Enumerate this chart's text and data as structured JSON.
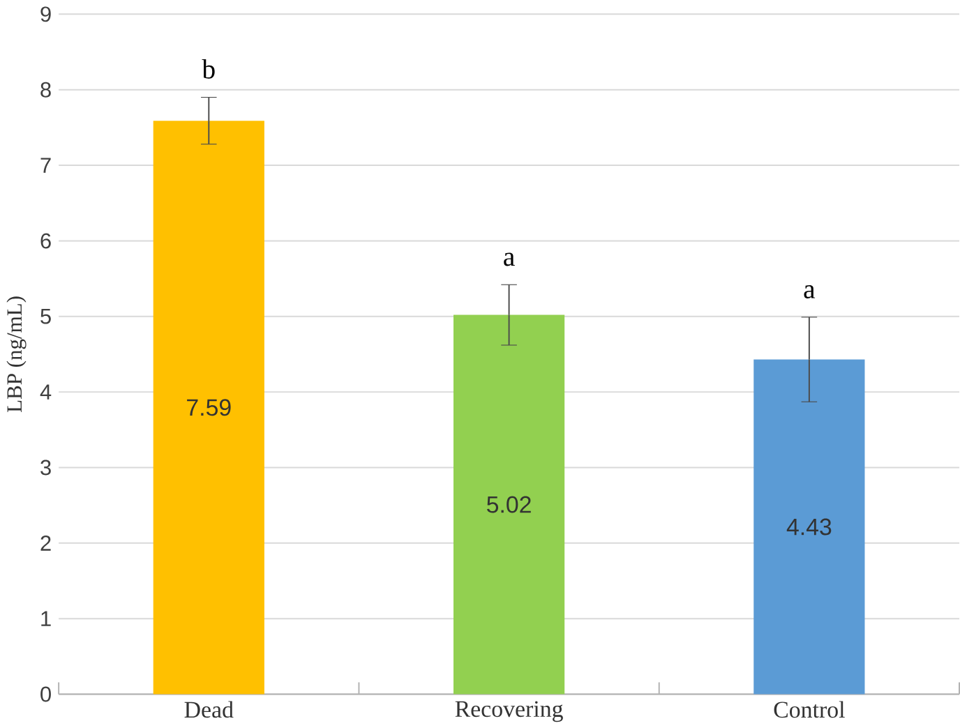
{
  "chart_data": {
    "type": "bar",
    "ylabel": "LBP (ng/mL)",
    "categories": [
      "Dead",
      "Recovering",
      "Control"
    ],
    "values": [
      7.59,
      5.02,
      4.43
    ],
    "colors": [
      "#ffc000",
      "#92d050",
      "#5b9bd5"
    ],
    "errors": [
      0.31,
      0.4,
      0.56
    ],
    "data_labels": true,
    "annotations": [
      "b",
      "a",
      "a"
    ],
    "ylim": [
      0,
      9
    ],
    "yticks": [
      0,
      1,
      2,
      3,
      4,
      5,
      6,
      7,
      8,
      9
    ],
    "grid": "y"
  }
}
